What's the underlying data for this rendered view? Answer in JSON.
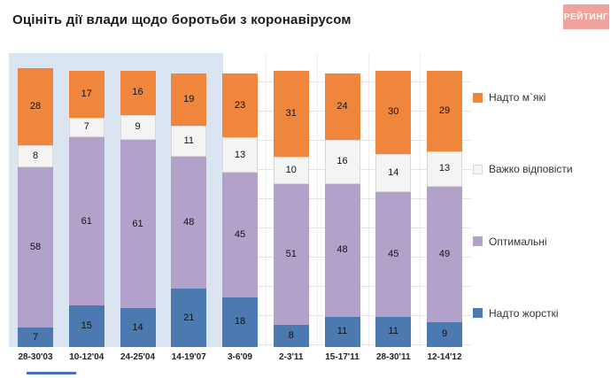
{
  "title": "Оцініть дії влади щодо боротьби з коронавірусом",
  "logo": "РЕЙТИНГ",
  "colors": {
    "logo_bg": "#f2a29e",
    "highlight_bg": "#dae5f1",
    "footer_line": "#4472c4"
  },
  "chart_data": {
    "type": "bar",
    "stacked": true,
    "title": "Оцініть дії влади щодо боротьби з коронавірусом",
    "categories": [
      "28-30'03",
      "10-12'04",
      "24-25'04",
      "14-19'07",
      "3-6'09",
      "2-3'11",
      "15-17'11",
      "28-30'11",
      "12-14'12"
    ],
    "series": [
      {
        "name": "Надто жорсткі",
        "color": "#4c7ab0",
        "values": [
          7,
          15,
          14,
          21,
          18,
          8,
          11,
          11,
          9
        ]
      },
      {
        "name": "Оптимальні",
        "color": "#b2a1c9",
        "values": [
          58,
          61,
          61,
          48,
          45,
          51,
          48,
          45,
          49
        ]
      },
      {
        "name": "Важко відповісти",
        "color": "#f4f4f2",
        "border": "#d8d8d8",
        "values": [
          8,
          7,
          9,
          11,
          13,
          10,
          16,
          14,
          13
        ]
      },
      {
        "name": "Надто м`які",
        "color": "#f0863c",
        "values": [
          28,
          17,
          16,
          19,
          23,
          31,
          24,
          30,
          29
        ]
      }
    ],
    "legend": [
      "Надто м`які",
      "Важко відповісти",
      "Оптимальні",
      "Надто жорсткі"
    ],
    "legend_position": "right",
    "grid": true,
    "highlight_region": {
      "from_category_index": 0,
      "to_category_index": 3
    },
    "value_labels": "inside",
    "ylim": [
      0,
      100
    ]
  }
}
